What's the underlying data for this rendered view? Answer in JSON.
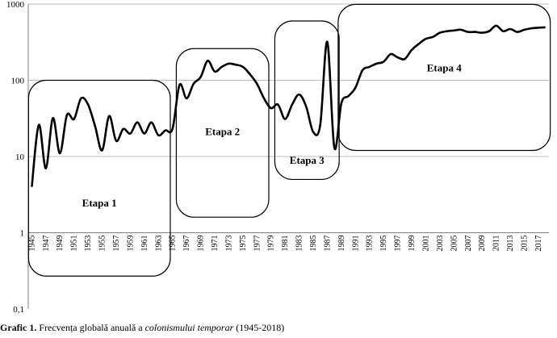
{
  "caption": {
    "label": "Grafic 1.",
    "text_before": " Frecvența globală anuală a ",
    "text_italic": "colonismului temporar",
    "text_after": " (1945-2018)"
  },
  "chart_data": {
    "type": "line",
    "title": "",
    "xlabel": "",
    "ylabel": "",
    "yscale": "log",
    "ylim": [
      0.1,
      1000
    ],
    "xlim": [
      1945,
      2018
    ],
    "y_ticks": [
      "0,1",
      "1",
      "10",
      "100",
      "1000"
    ],
    "x_tick_labels": [
      "1945",
      "1947",
      "1949",
      "1951",
      "1953",
      "1955",
      "1957",
      "1959",
      "1961",
      "1963",
      "1965",
      "1967",
      "1969",
      "1971",
      "1973",
      "1975",
      "1977",
      "1979",
      "1981",
      "1983",
      "1985",
      "1987",
      "1989",
      "1991",
      "1993",
      "1995",
      "1997",
      "1999",
      "2001",
      "2003",
      "2005",
      "2007",
      "2009",
      "2011",
      "2013",
      "2015",
      "2017"
    ],
    "grid": true,
    "legend": "none",
    "line_color": "#000000",
    "x": [
      1945,
      1946,
      1947,
      1948,
      1949,
      1950,
      1951,
      1952,
      1953,
      1954,
      1955,
      1956,
      1957,
      1958,
      1959,
      1960,
      1961,
      1962,
      1963,
      1964,
      1965,
      1966,
      1967,
      1968,
      1969,
      1970,
      1971,
      1972,
      1973,
      1974,
      1975,
      1976,
      1977,
      1978,
      1979,
      1980,
      1981,
      1982,
      1983,
      1984,
      1985,
      1986,
      1987,
      1988,
      1989,
      1990,
      1991,
      1992,
      1993,
      1994,
      1995,
      1996,
      1997,
      1998,
      1999,
      2000,
      2001,
      2002,
      2003,
      2004,
      2005,
      2006,
      2007,
      2008,
      2009,
      2010,
      2011,
      2012,
      2013,
      2014,
      2015,
      2016,
      2017,
      2018
    ],
    "y": [
      4,
      26,
      7,
      32,
      11,
      35,
      31,
      58,
      48,
      25,
      12,
      34,
      16,
      23,
      20,
      28,
      20,
      28,
      19,
      22,
      23,
      87,
      58,
      90,
      110,
      180,
      130,
      150,
      165,
      160,
      150,
      120,
      90,
      58,
      43,
      48,
      31,
      48,
      65,
      45,
      21,
      26,
      320,
      13,
      50,
      62,
      80,
      135,
      150,
      165,
      175,
      220,
      200,
      190,
      250,
      300,
      350,
      370,
      420,
      440,
      450,
      460,
      430,
      430,
      420,
      440,
      520,
      440,
      470,
      430,
      460,
      480,
      490,
      495
    ],
    "stages": [
      {
        "label": "Etapa 1",
        "from": 1945,
        "to": 1964
      },
      {
        "label": "Etapa 2",
        "from": 1966,
        "to": 1978
      },
      {
        "label": "Etapa 3",
        "from": 1980,
        "to": 1988
      },
      {
        "label": "Etapa 4",
        "from": 1989,
        "to": 2018
      }
    ]
  }
}
